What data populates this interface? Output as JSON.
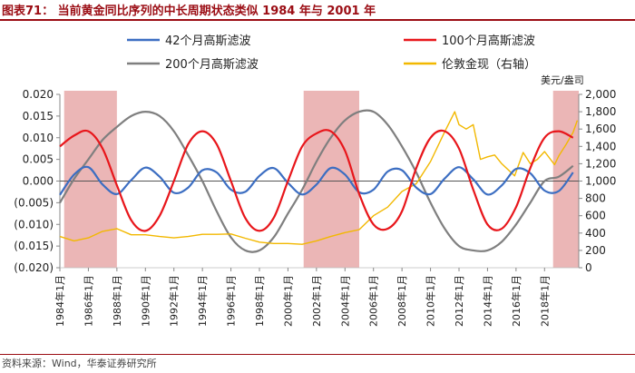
{
  "figure_title": "图表71： 当前黄金同比序列的中长周期状态类似 1984 年与 2001 年",
  "source_note": "资料来源：Wind，华泰证券研究所",
  "chart_data": {
    "type": "line",
    "title": "当前黄金同比序列的中长周期状态类似 1984 年与 2001 年",
    "x_range": [
      1984,
      2020.4
    ],
    "x_ticks": [
      1984,
      1986,
      1988,
      1990,
      1992,
      1994,
      1996,
      1998,
      2000,
      2002,
      2004,
      2006,
      2008,
      2010,
      2012,
      2014,
      2016,
      2018
    ],
    "x_tick_suffix": "年1月",
    "y_left": {
      "min": -0.02,
      "max": 0.02,
      "ticks": [
        -0.02,
        -0.015,
        -0.01,
        -0.005,
        0.0,
        0.005,
        0.01,
        0.015,
        0.02
      ],
      "tick_labels": [
        "(0.020)",
        "(0.015)",
        "(0.010)",
        "(0.005)",
        "0.000",
        "0.005",
        "0.010",
        "0.015",
        "0.020"
      ]
    },
    "y_right": {
      "label": "美元/盎司",
      "min": 0,
      "max": 2000,
      "ticks": [
        0,
        200,
        400,
        600,
        800,
        1000,
        1200,
        1400,
        1600,
        1800,
        2000
      ],
      "tick_labels": [
        "0",
        "200",
        "400",
        "600",
        "800",
        "1,000",
        "1,200",
        "1,400",
        "1,600",
        "1,800",
        "2,000"
      ]
    },
    "shaded_periods": [
      [
        1984.3,
        1988.0
      ],
      [
        2001.1,
        2005.0
      ],
      [
        2018.6,
        2020.4
      ]
    ],
    "series": [
      {
        "name": "42个月高斯滤波",
        "color": "#3c6ec2",
        "axis": "left",
        "points": [
          [
            1984.0,
            -0.0032
          ],
          [
            1985.0,
            0.0015
          ],
          [
            1986.0,
            0.0032
          ],
          [
            1987.0,
            -0.0008
          ],
          [
            1988.0,
            -0.003
          ],
          [
            1989.0,
            0.0002
          ],
          [
            1990.0,
            0.0031
          ],
          [
            1991.0,
            0.001
          ],
          [
            1992.0,
            -0.0027
          ],
          [
            1993.0,
            -0.0015
          ],
          [
            1994.0,
            0.0025
          ],
          [
            1995.0,
            0.002
          ],
          [
            1996.0,
            -0.002
          ],
          [
            1997.0,
            -0.0025
          ],
          [
            1998.0,
            0.0012
          ],
          [
            1999.0,
            0.003
          ],
          [
            2000.0,
            -0.0004
          ],
          [
            2001.0,
            -0.0031
          ],
          [
            2002.0,
            -0.0008
          ],
          [
            2003.0,
            0.003
          ],
          [
            2004.0,
            0.0015
          ],
          [
            2005.0,
            -0.0026
          ],
          [
            2006.0,
            -0.002
          ],
          [
            2007.0,
            0.0022
          ],
          [
            2008.0,
            0.0025
          ],
          [
            2009.0,
            -0.0015
          ],
          [
            2010.0,
            -0.003
          ],
          [
            2011.0,
            0.0006
          ],
          [
            2012.0,
            0.0032
          ],
          [
            2013.0,
            0.0004
          ],
          [
            2014.0,
            -0.0031
          ],
          [
            2015.0,
            -0.001
          ],
          [
            2016.0,
            0.0028
          ],
          [
            2017.0,
            0.0018
          ],
          [
            2018.0,
            -0.0022
          ],
          [
            2019.0,
            -0.0023
          ],
          [
            2020.0,
            0.002
          ]
        ]
      },
      {
        "name": "100个月高斯滤波",
        "color": "#e8161b",
        "axis": "left",
        "points": [
          [
            1984.0,
            0.008
          ],
          [
            1985.0,
            0.0105
          ],
          [
            1986.0,
            0.0115
          ],
          [
            1987.0,
            0.0075
          ],
          [
            1988.0,
            -0.001
          ],
          [
            1989.0,
            -0.009
          ],
          [
            1990.0,
            -0.0115
          ],
          [
            1991.0,
            -0.008
          ],
          [
            1992.0,
            0.0
          ],
          [
            1993.0,
            0.0085
          ],
          [
            1994.0,
            0.0115
          ],
          [
            1995.0,
            0.0085
          ],
          [
            1996.0,
            0.0
          ],
          [
            1997.0,
            -0.0085
          ],
          [
            1998.0,
            -0.0115
          ],
          [
            1999.0,
            -0.0085
          ],
          [
            2000.0,
            0.0
          ],
          [
            2001.0,
            0.008
          ],
          [
            2002.0,
            0.011
          ],
          [
            2003.0,
            0.0115
          ],
          [
            2004.0,
            0.007
          ],
          [
            2005.0,
            -0.003
          ],
          [
            2006.0,
            -0.01
          ],
          [
            2007.0,
            -0.011
          ],
          [
            2008.0,
            -0.007
          ],
          [
            2009.0,
            0.003
          ],
          [
            2010.0,
            0.01
          ],
          [
            2011.0,
            0.0115
          ],
          [
            2012.0,
            0.0075
          ],
          [
            2013.0,
            -0.002
          ],
          [
            2014.0,
            -0.01
          ],
          [
            2015.0,
            -0.011
          ],
          [
            2016.0,
            -0.006
          ],
          [
            2017.0,
            0.003
          ],
          [
            2018.0,
            0.01
          ],
          [
            2019.0,
            0.0115
          ],
          [
            2020.0,
            0.01
          ]
        ]
      },
      {
        "name": "200个月高斯滤波",
        "color": "#7f7f7f",
        "axis": "left",
        "points": [
          [
            1984.0,
            -0.005
          ],
          [
            1985.0,
            0.0005
          ],
          [
            1986.0,
            0.005
          ],
          [
            1987.0,
            0.0095
          ],
          [
            1988.0,
            0.0125
          ],
          [
            1989.0,
            0.015
          ],
          [
            1990.0,
            0.016
          ],
          [
            1991.0,
            0.015
          ],
          [
            1992.0,
            0.0115
          ],
          [
            1993.0,
            0.006
          ],
          [
            1994.0,
            0.0
          ],
          [
            1995.0,
            -0.007
          ],
          [
            1996.0,
            -0.013
          ],
          [
            1997.0,
            -0.016
          ],
          [
            1998.0,
            -0.016
          ],
          [
            1999.0,
            -0.013
          ],
          [
            2000.0,
            -0.0075
          ],
          [
            2001.0,
            -0.002
          ],
          [
            2002.0,
            0.0045
          ],
          [
            2003.0,
            0.01
          ],
          [
            2004.0,
            0.014
          ],
          [
            2005.0,
            0.016
          ],
          [
            2006.0,
            0.016
          ],
          [
            2007.0,
            0.013
          ],
          [
            2008.0,
            0.008
          ],
          [
            2009.0,
            0.002
          ],
          [
            2010.0,
            -0.005
          ],
          [
            2011.0,
            -0.011
          ],
          [
            2012.0,
            -0.015
          ],
          [
            2013.0,
            -0.016
          ],
          [
            2014.0,
            -0.016
          ],
          [
            2015.0,
            -0.014
          ],
          [
            2016.0,
            -0.01
          ],
          [
            2017.0,
            -0.005
          ],
          [
            2018.0,
            0.0
          ],
          [
            2019.0,
            0.001
          ],
          [
            2020.0,
            0.0035
          ]
        ]
      },
      {
        "name": "伦敦金现（右轴）",
        "color": "#f2b800",
        "axis": "right",
        "points": [
          [
            1984.0,
            360
          ],
          [
            1985.0,
            310
          ],
          [
            1986.0,
            345
          ],
          [
            1987.0,
            420
          ],
          [
            1988.0,
            450
          ],
          [
            1989.0,
            380
          ],
          [
            1990.0,
            380
          ],
          [
            1991.0,
            360
          ],
          [
            1992.0,
            345
          ],
          [
            1993.0,
            360
          ],
          [
            1994.0,
            385
          ],
          [
            1995.0,
            385
          ],
          [
            1996.0,
            390
          ],
          [
            1997.0,
            340
          ],
          [
            1998.0,
            295
          ],
          [
            1999.0,
            280
          ],
          [
            2000.0,
            280
          ],
          [
            2001.0,
            270
          ],
          [
            2002.0,
            310
          ],
          [
            2003.0,
            360
          ],
          [
            2004.0,
            405
          ],
          [
            2005.0,
            440
          ],
          [
            2006.0,
            600
          ],
          [
            2007.0,
            700
          ],
          [
            2008.0,
            880
          ],
          [
            2009.0,
            970
          ],
          [
            2010.0,
            1225
          ],
          [
            2011.0,
            1570
          ],
          [
            2011.7,
            1800
          ],
          [
            2012.0,
            1650
          ],
          [
            2012.5,
            1600
          ],
          [
            2013.0,
            1650
          ],
          [
            2013.5,
            1250
          ],
          [
            2014.0,
            1280
          ],
          [
            2014.5,
            1300
          ],
          [
            2015.0,
            1200
          ],
          [
            2015.9,
            1060
          ],
          [
            2016.5,
            1330
          ],
          [
            2017.0,
            1200
          ],
          [
            2017.5,
            1250
          ],
          [
            2018.0,
            1340
          ],
          [
            2018.7,
            1190
          ],
          [
            2019.0,
            1290
          ],
          [
            2019.5,
            1420
          ],
          [
            2020.0,
            1560
          ],
          [
            2020.3,
            1700
          ]
        ]
      }
    ]
  }
}
